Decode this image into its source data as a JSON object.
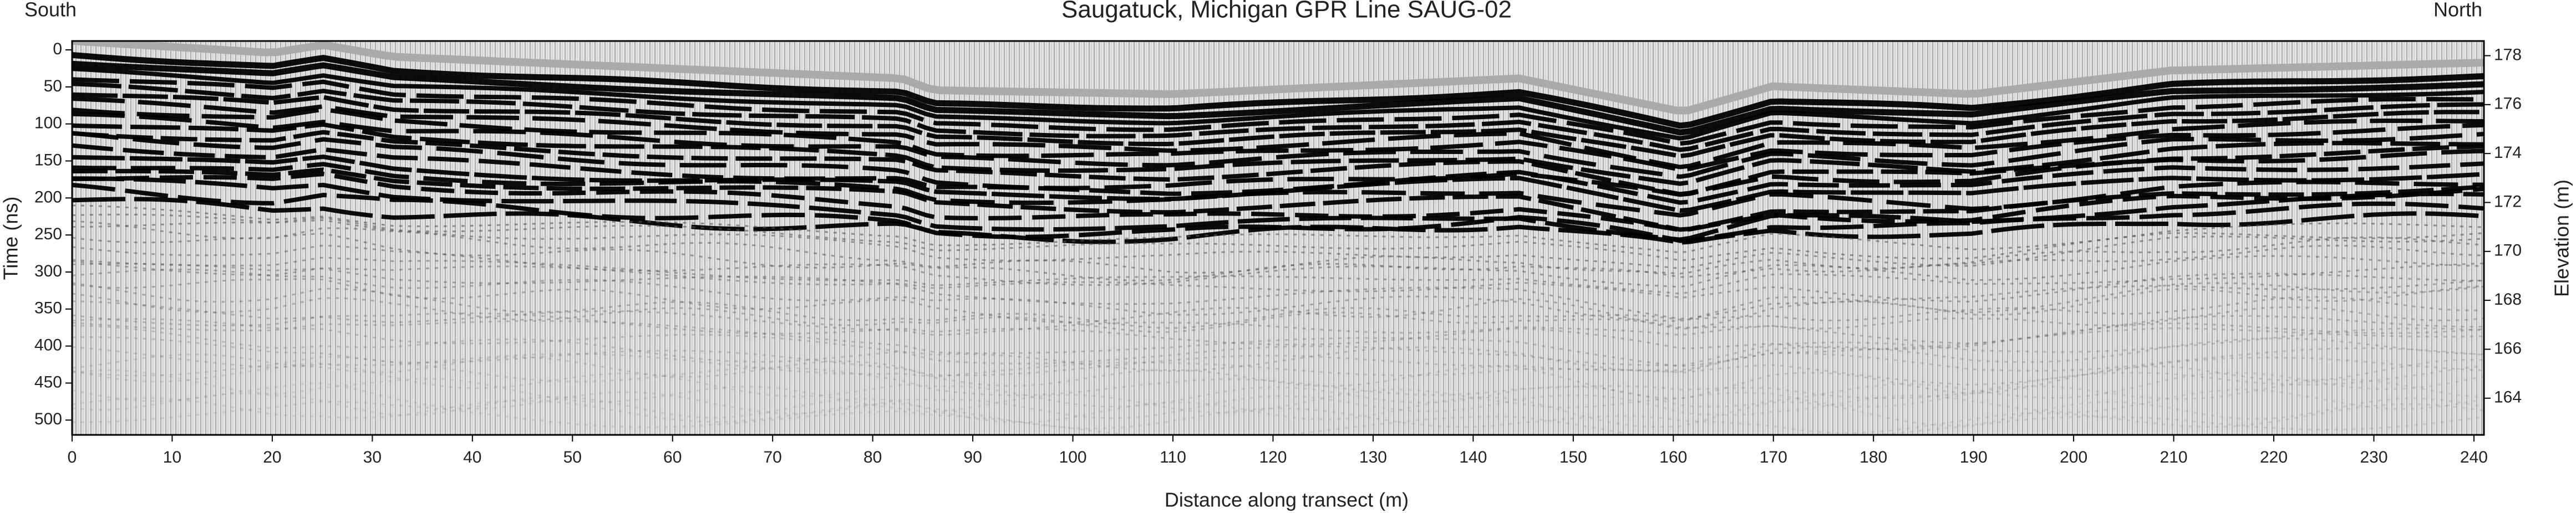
{
  "chart_data": {
    "type": "radargram",
    "title": "Saugatuck, Michigan    GPR Line  SAUG-02",
    "left_annotation": "South",
    "right_annotation": "North",
    "xlabel": "Distance along transect (m)",
    "ylabel": "Time (ns)",
    "y2label": "Elevation (m)",
    "xlim": [
      0,
      241
    ],
    "xticks": [
      0,
      10,
      20,
      30,
      40,
      50,
      60,
      70,
      80,
      90,
      100,
      110,
      120,
      130,
      140,
      150,
      160,
      170,
      180,
      190,
      200,
      210,
      220,
      230,
      240
    ],
    "ylim": [
      520,
      -12
    ],
    "yticks": [
      0,
      50,
      100,
      150,
      200,
      250,
      300,
      350,
      400,
      450,
      500
    ],
    "y2lim": [
      162.5,
      178.6
    ],
    "y2ticks": [
      164,
      166,
      168,
      170,
      172,
      174,
      176,
      178
    ]
  }
}
